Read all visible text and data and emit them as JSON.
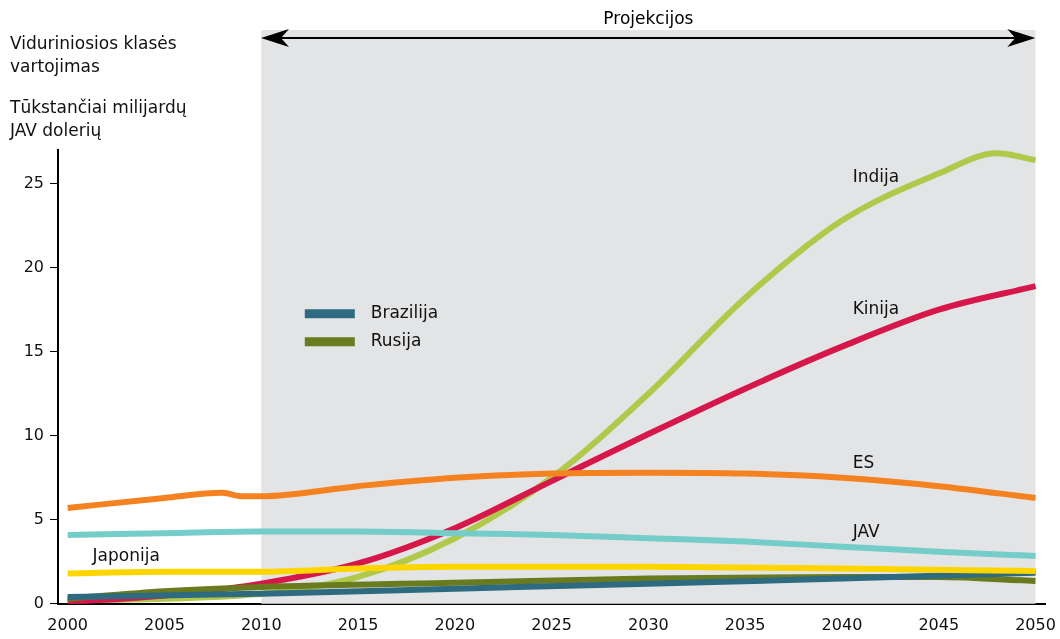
{
  "chart_data": {
    "type": "line",
    "title": "Viduriniosios klasės vartojimas",
    "ylabel": "Tūkstančiai milijardų JAV dolerių",
    "xlim": [
      1999.5,
      2050.5
    ],
    "xticks": [
      2000,
      2005,
      2010,
      2015,
      2020,
      2025,
      2030,
      2035,
      2040,
      2045,
      2050
    ],
    "ylim": [
      0,
      27
    ],
    "yticks": [
      0,
      5,
      10,
      15,
      20,
      25
    ],
    "grid": false,
    "legend": "left",
    "marker": "none",
    "line_style": "solid",
    "bands": [
      {
        "axis": "x",
        "from": 2010,
        "to": 2050,
        "label": "Projekcijos",
        "color": "#e3e4e6"
      }
    ],
    "series": [
      {
        "name": "JAV",
        "color": "#74cdc8",
        "x": [
          2000,
          2005,
          2010,
          2015,
          2020,
          2025,
          2030,
          2035,
          2040,
          2045,
          2050
        ],
        "values": [
          4.1,
          4.2,
          4.3,
          4.3,
          4.2,
          4.1,
          3.9,
          3.7,
          3.4,
          3.1,
          2.85
        ]
      },
      {
        "name": "ES",
        "color": "#f58220",
        "x": [
          2000,
          2005,
          2008,
          2009,
          2010,
          2015,
          2020,
          2025,
          2030,
          2035,
          2040,
          2045,
          2050
        ],
        "values": [
          5.7,
          6.3,
          6.6,
          6.4,
          6.4,
          7.0,
          7.5,
          7.75,
          7.8,
          7.75,
          7.5,
          7.0,
          6.3
        ]
      },
      {
        "name": "Japonija",
        "color": "#ffd500",
        "x": [
          2000,
          2005,
          2010,
          2015,
          2020,
          2030,
          2040,
          2050
        ],
        "values": [
          1.8,
          1.9,
          1.9,
          2.1,
          2.2,
          2.2,
          2.1,
          1.95
        ]
      },
      {
        "name": "Brazilija",
        "color": "#2e6b80",
        "x": [
          2000,
          2010,
          2020,
          2030,
          2040,
          2050
        ],
        "values": [
          0.4,
          0.6,
          0.9,
          1.2,
          1.5,
          1.85
        ]
      },
      {
        "name": "Rusija",
        "color": "#6a7a1e",
        "x": [
          2000,
          2005,
          2010,
          2020,
          2030,
          2040,
          2045,
          2050
        ],
        "values": [
          0.3,
          0.75,
          1.0,
          1.25,
          1.5,
          1.6,
          1.6,
          1.35
        ]
      },
      {
        "name": "Kinija",
        "color": "#d6174a",
        "x": [
          2000,
          2005,
          2010,
          2015,
          2020,
          2025,
          2030,
          2035,
          2040,
          2045,
          2050
        ],
        "values": [
          0.1,
          0.5,
          1.2,
          2.4,
          4.5,
          7.3,
          10.1,
          12.8,
          15.3,
          17.5,
          18.9
        ]
      },
      {
        "name": "Indija",
        "color": "#b0c94a",
        "x": [
          2000,
          2005,
          2010,
          2015,
          2020,
          2025,
          2030,
          2035,
          2040,
          2045,
          2048,
          2050
        ],
        "values": [
          0.2,
          0.3,
          0.6,
          1.6,
          3.9,
          7.5,
          12.5,
          18.2,
          22.8,
          25.6,
          26.8,
          26.4
        ]
      }
    ]
  }
}
